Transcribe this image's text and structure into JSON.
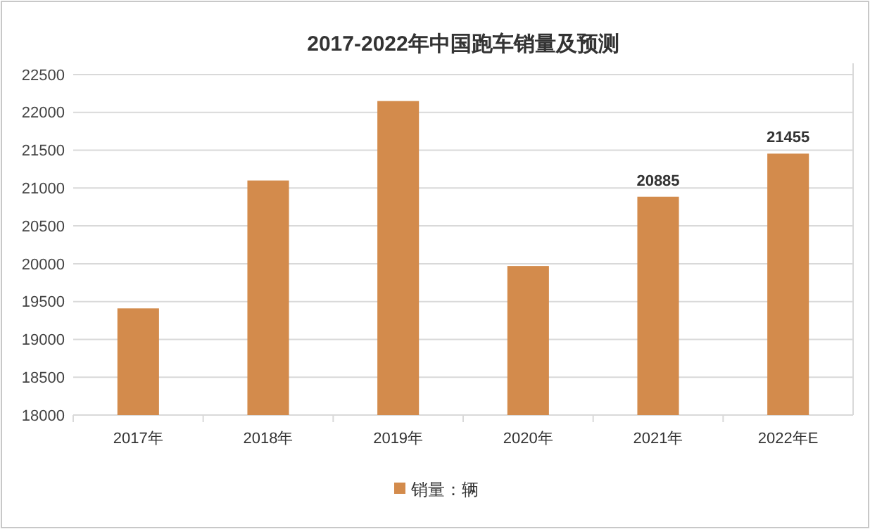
{
  "chart_data": {
    "type": "bar",
    "title": "2017-2022年中国跑车销量及预测",
    "categories": [
      "2017年",
      "2018年",
      "2019年",
      "2020年",
      "2021年",
      "2022年E"
    ],
    "series": [
      {
        "name": "销量：辆",
        "color": "#d38b4c",
        "values": [
          19410,
          21100,
          22150,
          19970,
          20885,
          21455
        ],
        "value_labels": [
          null,
          null,
          null,
          null,
          "20885",
          "21455"
        ]
      }
    ],
    "ylim": [
      18000,
      22500
    ],
    "yticks": [
      18000,
      18500,
      19000,
      19500,
      20000,
      20500,
      21000,
      21500,
      22000,
      22500
    ],
    "grid": "y",
    "legend": "bottom"
  }
}
